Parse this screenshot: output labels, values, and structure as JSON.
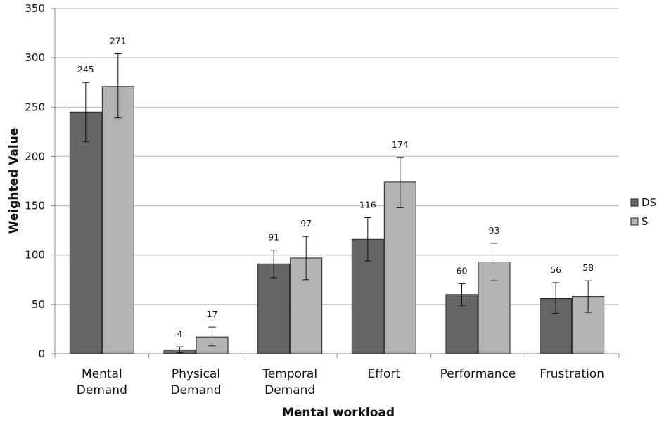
{
  "chart_data": {
    "type": "bar",
    "title": "",
    "xlabel": "Mental workload",
    "ylabel": "Weighted Value",
    "ylim": [
      0,
      350
    ],
    "yticks": [
      0,
      50,
      100,
      150,
      200,
      250,
      300,
      350
    ],
    "grid": true,
    "legend_position": "right",
    "categories": [
      [
        "Mental",
        "Demand"
      ],
      [
        "Physical",
        "Demand"
      ],
      [
        "Temporal",
        "Demand"
      ],
      [
        "Effort"
      ],
      [
        "Performance"
      ],
      [
        "Frustration"
      ]
    ],
    "series": [
      {
        "name": "DS",
        "color": "#666666",
        "values": [
          245,
          4,
          91,
          116,
          60,
          56
        ],
        "error": [
          [
            215,
            275
          ],
          [
            1,
            7
          ],
          [
            77,
            105
          ],
          [
            94,
            138
          ],
          [
            49,
            71
          ],
          [
            41,
            72
          ]
        ]
      },
      {
        "name": "S",
        "color": "#b3b3b3",
        "values": [
          271,
          17,
          97,
          174,
          93,
          58
        ],
        "error": [
          [
            239,
            304
          ],
          [
            8,
            27
          ],
          [
            75,
            119
          ],
          [
            148,
            199
          ],
          [
            74,
            112
          ],
          [
            42,
            74
          ]
        ]
      }
    ]
  }
}
